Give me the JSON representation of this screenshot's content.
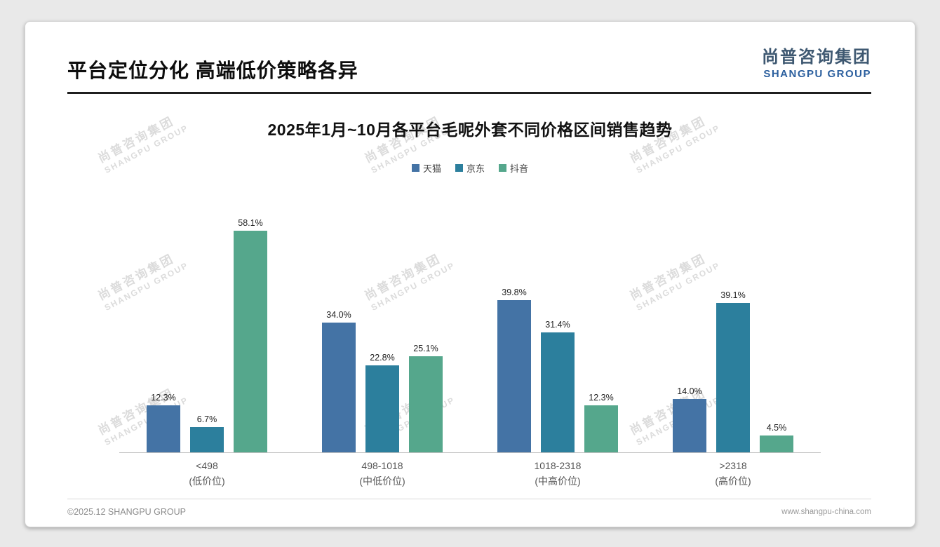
{
  "page": {
    "title": "平台定位分化 高端低价策略各异",
    "logo": {
      "cn": "尚普咨询集团",
      "en": "SHANGPU GROUP"
    },
    "watermark": {
      "cn": "尚普咨询集团",
      "en": "SHANGPU GROUP"
    },
    "footer": {
      "left": "©2025.12 SHANGPU GROUP",
      "right": "www.shangpu-china.com"
    }
  },
  "chart_data": {
    "type": "bar",
    "title": "2025年1月~10月各平台毛呢外套不同价格区间销售趋势",
    "categories": [
      {
        "line1": "<498",
        "line2": "(低价位)"
      },
      {
        "line1": "498-1018",
        "line2": "(中低价位)"
      },
      {
        "line1": "1018-2318",
        "line2": "(中高价位)"
      },
      {
        "line1": ">2318",
        "line2": "(高价位)"
      }
    ],
    "series": [
      {
        "name": "天猫",
        "color": "#4473a5",
        "values": [
          12.3,
          34.0,
          39.8,
          14.0
        ]
      },
      {
        "name": "京东",
        "color": "#2c7f9d",
        "values": [
          6.7,
          22.8,
          31.4,
          39.1
        ]
      },
      {
        "name": "抖音",
        "color": "#55a78c",
        "values": [
          58.1,
          25.1,
          12.3,
          4.5
        ]
      }
    ],
    "value_suffix": "%",
    "ylim": [
      0,
      65
    ],
    "legend_position": "top",
    "grid": false
  }
}
